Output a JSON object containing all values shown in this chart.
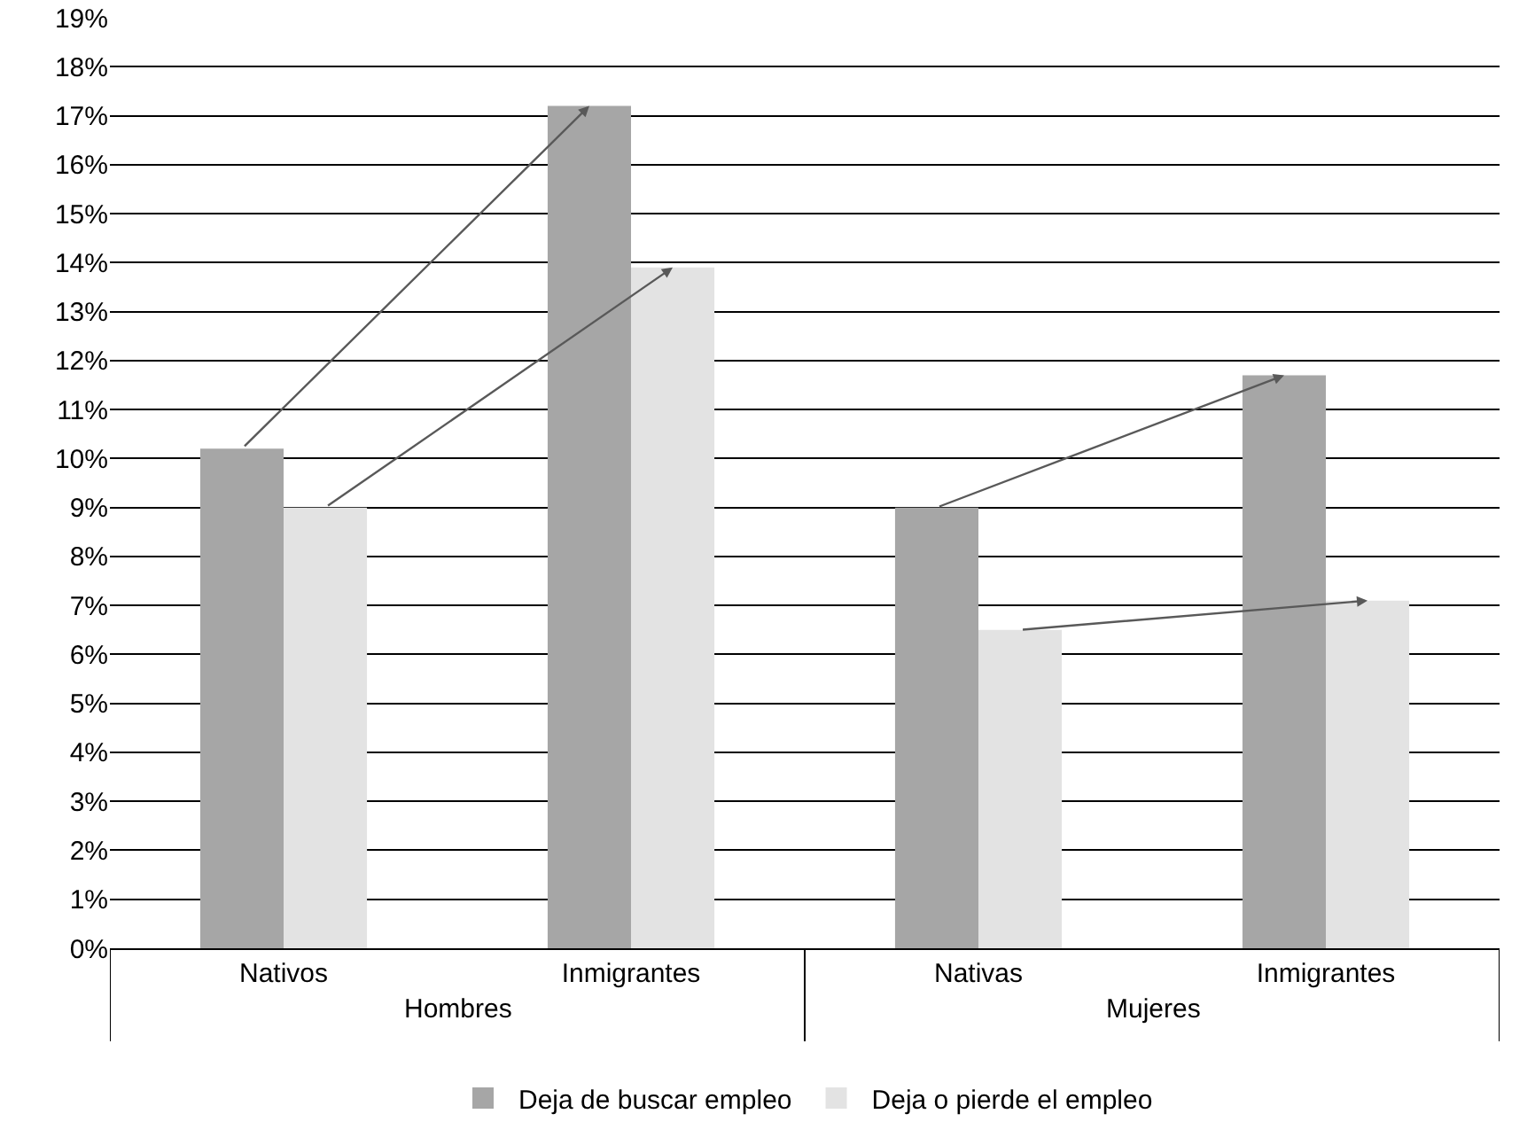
{
  "chart_data": {
    "type": "bar",
    "categories": [
      "Nativos",
      "Inmigrantes",
      "Nativas",
      "Inmigrantes"
    ],
    "series": [
      {
        "name": "Deja de buscar empleo",
        "color": "#a6a6a6",
        "values": [
          10.2,
          17.2,
          9.0,
          11.7
        ]
      },
      {
        "name": "Deja o pierde el empleo",
        "color": "#e3e3e3",
        "values": [
          9.0,
          13.9,
          6.5,
          7.1
        ]
      }
    ],
    "annotations": [
      "Hombres",
      "Mujeres"
    ],
    "ylim": [
      0,
      19
    ],
    "yticks": [
      {
        "value": 0,
        "label": "0%"
      },
      {
        "value": 1,
        "label": "1%"
      },
      {
        "value": 2,
        "label": "2%"
      },
      {
        "value": 3,
        "label": "3%"
      },
      {
        "value": 4,
        "label": "4%"
      },
      {
        "value": 5,
        "label": "5%"
      },
      {
        "value": 6,
        "label": "6%"
      },
      {
        "value": 7,
        "label": "7%"
      },
      {
        "value": 8,
        "label": "8%"
      },
      {
        "value": 9,
        "label": "9%"
      },
      {
        "value": 10,
        "label": "10%"
      },
      {
        "value": 11,
        "label": "11%"
      },
      {
        "value": 12,
        "label": "12%"
      },
      {
        "value": 13,
        "label": "13%"
      },
      {
        "value": 14,
        "label": "14%"
      },
      {
        "value": 15,
        "label": "15%"
      },
      {
        "value": 16,
        "label": "16%"
      },
      {
        "value": 17,
        "label": "17%"
      },
      {
        "value": 18,
        "label": "18%"
      },
      {
        "value": 19,
        "label": "19%"
      }
    ],
    "grid": "y",
    "legend": "bottom"
  }
}
